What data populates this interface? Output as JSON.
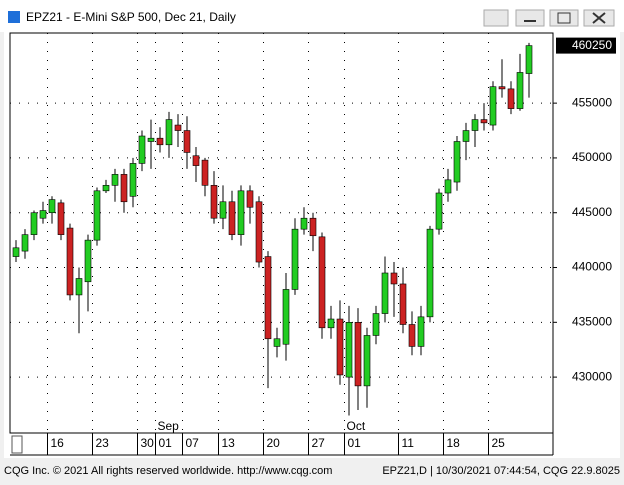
{
  "window_title": "EPZ21 - E-Mini S&P 500, Dec 21, Daily",
  "footer": {
    "left": "CQG Inc. © 2021 All rights reserved worldwide. http://www.cqg.com",
    "right": "EPZ21,D | 10/30/2021 07:44:54, CQG 22.9.8025"
  },
  "chart_data": {
    "type": "candlestick",
    "categories": [
      null,
      null,
      null,
      null,
      "16",
      null,
      null,
      null,
      null,
      "23",
      null,
      null,
      null,
      null,
      "30",
      null,
      "01",
      null,
      null,
      "07",
      null,
      null,
      null,
      "13",
      null,
      null,
      null,
      null,
      "20",
      null,
      null,
      null,
      null,
      "27",
      null,
      null,
      null,
      "01",
      null,
      null,
      null,
      null,
      null,
      "11",
      null,
      null,
      null,
      null,
      "18",
      null,
      null,
      null,
      null,
      "25",
      null,
      null,
      null,
      null
    ],
    "months": [
      null,
      null,
      null,
      null,
      null,
      null,
      null,
      null,
      null,
      null,
      null,
      null,
      null,
      null,
      null,
      null,
      "Sep",
      null,
      null,
      null,
      null,
      null,
      null,
      null,
      null,
      null,
      null,
      null,
      null,
      null,
      null,
      null,
      null,
      null,
      null,
      null,
      null,
      "Oct",
      null,
      null,
      null,
      null,
      null,
      null,
      null,
      null,
      null,
      null,
      null,
      null,
      null,
      null,
      null,
      null,
      null,
      null,
      null,
      null
    ],
    "open": [
      441000,
      441500,
      443000,
      444500,
      445000,
      445900,
      443600,
      437500,
      438700,
      442500,
      447000,
      447500,
      448500,
      446500,
      449500,
      451500,
      451800,
      451200,
      453000,
      452500,
      450200,
      449800,
      447500,
      444500,
      446000,
      443000,
      447000,
      446000,
      441000,
      432800,
      433000,
      438000,
      443500,
      444500,
      442800,
      434500,
      435300,
      430000,
      435000,
      429200,
      433800,
      435800,
      439500,
      438500,
      434800,
      432800,
      435500,
      443500,
      446800,
      447800,
      451500,
      452500,
      453500,
      453000,
      456500,
      456300,
      454500,
      457700
    ],
    "high": [
      442500,
      443500,
      445200,
      446000,
      446500,
      446200,
      444000,
      440000,
      443000,
      447300,
      448000,
      449000,
      449000,
      450000,
      452500,
      453500,
      452800,
      454200,
      454000,
      453800,
      451000,
      450000,
      448800,
      447500,
      447000,
      447500,
      447500,
      446500,
      441500,
      434500,
      439500,
      444500,
      445500,
      445000,
      443200,
      436500,
      437000,
      436500,
      436300,
      434500,
      436500,
      441000,
      440500,
      440000,
      436000,
      436500,
      443800,
      447200,
      449000,
      452000,
      453200,
      454000,
      455000,
      457000,
      459000,
      457000,
      459500,
      460500
    ],
    "low": [
      440500,
      440800,
      442500,
      444000,
      444000,
      442500,
      437000,
      434000,
      436000,
      442000,
      446800,
      446000,
      445000,
      445500,
      448800,
      449000,
      450500,
      450000,
      451000,
      449000,
      447800,
      446500,
      444000,
      443500,
      442500,
      442000,
      444000,
      440000,
      429000,
      431800,
      431500,
      437500,
      443000,
      441500,
      433500,
      433500,
      429300,
      426500,
      427000,
      427200,
      433000,
      435000,
      435500,
      434000,
      432000,
      432000,
      435000,
      443000,
      446000,
      447000,
      449800,
      451000,
      452500,
      452500,
      455500,
      454000,
      454300,
      455500
    ],
    "close": [
      441800,
      443000,
      445000,
      445200,
      446200,
      443000,
      437500,
      439000,
      442500,
      447000,
      447500,
      448500,
      446000,
      449500,
      452000,
      451800,
      451200,
      453500,
      452500,
      450500,
      449300,
      447500,
      444500,
      446000,
      443000,
      447000,
      445500,
      440500,
      433500,
      433500,
      438000,
      443500,
      444500,
      442900,
      434500,
      435300,
      430200,
      435000,
      429200,
      433800,
      435800,
      439500,
      438500,
      434800,
      432800,
      435500,
      443500,
      446800,
      448000,
      451500,
      452500,
      453500,
      453200,
      456500,
      456300,
      454500,
      457800,
      460250
    ],
    "up_color": "#22cc22",
    "down_color": "#cc2222",
    "ylim": [
      424900,
      461400
    ],
    "yticks": [
      430000,
      435000,
      440000,
      445000,
      450000,
      455000
    ],
    "last_price": 460250,
    "grid": true
  }
}
